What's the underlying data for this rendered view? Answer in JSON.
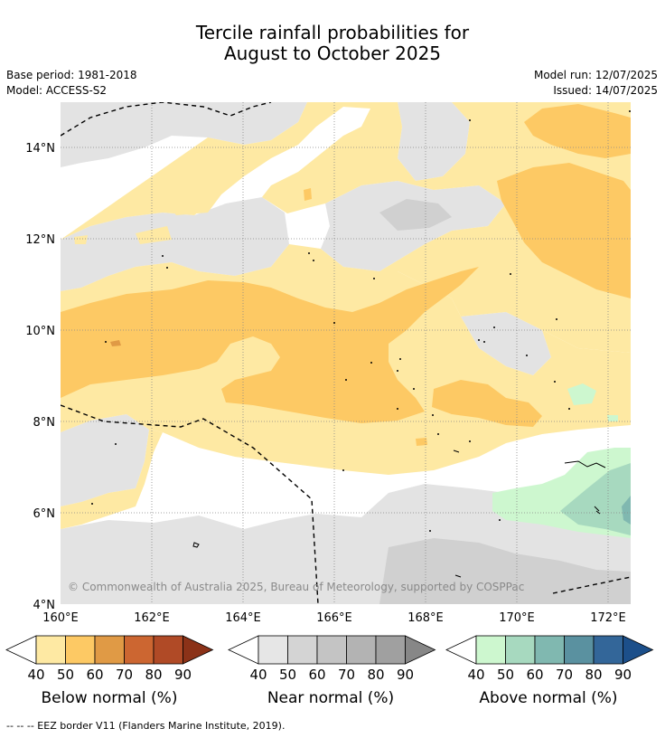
{
  "title_line1": "Tercile rainfall probabilities for",
  "title_line2": "August to October 2025",
  "base_period": "Base period: 1981-2018",
  "model": "Model: ACCESS-S2",
  "model_run": "Model run: 12/07/2025",
  "issued": "Issued: 14/07/2025",
  "copyright": "© Commonwealth of Australia 2025, Bureau of Meteorology, supported by COSPPac",
  "lat_labels": [
    "14°N",
    "12°N",
    "10°N",
    "8°N",
    "6°N",
    "4°N"
  ],
  "lon_labels": [
    "160°E",
    "162°E",
    "164°E",
    "166°E",
    "168°E",
    "170°E",
    "172°E"
  ],
  "colorbars": [
    {
      "label": "Below normal (%)",
      "ticks": [
        "40",
        "50",
        "60",
        "70",
        "80",
        "90"
      ],
      "colors": [
        "#fee9a3",
        "#fdc964",
        "#e09a45",
        "#cc6631",
        "#b04a26",
        "#8b3218"
      ]
    },
    {
      "label": "Near normal (%)",
      "ticks": [
        "40",
        "50",
        "60",
        "70",
        "80",
        "90"
      ],
      "colors": [
        "#e6e6e6",
        "#d4d4d4",
        "#c4c4c4",
        "#b3b3b3",
        "#a0a0a0",
        "#878787"
      ]
    },
    {
      "label": "Above normal (%)",
      "ticks": [
        "40",
        "50",
        "60",
        "70",
        "80",
        "90"
      ],
      "colors": [
        "#cdf7cf",
        "#a7d9bf",
        "#80b8b0",
        "#5a91a0",
        "#336699",
        "#1c4f8a"
      ]
    }
  ],
  "footnote": "--  --  -- EEZ border V11 (Flanders Marine Institute, 2019)."
}
